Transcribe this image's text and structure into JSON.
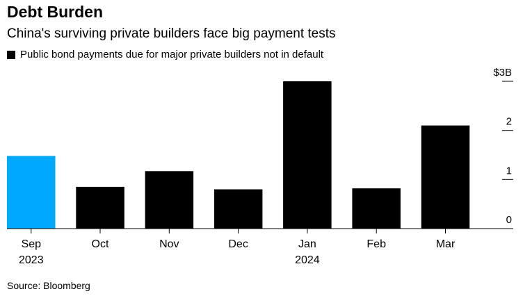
{
  "header": {
    "title": "Debt Burden",
    "subtitle": "China's surviving private builders face big payment tests",
    "legend_label": "Public bond payments due for major private builders not in default"
  },
  "footer": {
    "source": "Source: Bloomberg"
  },
  "colors": {
    "bar": "#000000",
    "highlight": "#00a8ff",
    "axis": "#000000"
  },
  "chart_data": {
    "type": "bar",
    "title": "Debt Burden",
    "subtitle": "China's surviving private builders face big payment tests",
    "categories": [
      "Sep",
      "Oct",
      "Nov",
      "Dec",
      "Jan",
      "Feb",
      "Mar"
    ],
    "category_sublabels": [
      "2023",
      "",
      "",
      "",
      "2024",
      "",
      ""
    ],
    "series": [
      {
        "name": "Public bond payments due for major private builders not in default",
        "values": [
          1.48,
          0.85,
          1.17,
          0.8,
          3.0,
          0.82,
          2.1
        ]
      }
    ],
    "highlight_index": 0,
    "ylim": [
      0,
      3
    ],
    "yticks": [
      0,
      1,
      2,
      3
    ],
    "ytick_labels": [
      "0",
      "1",
      "2",
      "$3B"
    ],
    "y_axis_position": "right",
    "grid": false,
    "legend_position": "top-left"
  }
}
